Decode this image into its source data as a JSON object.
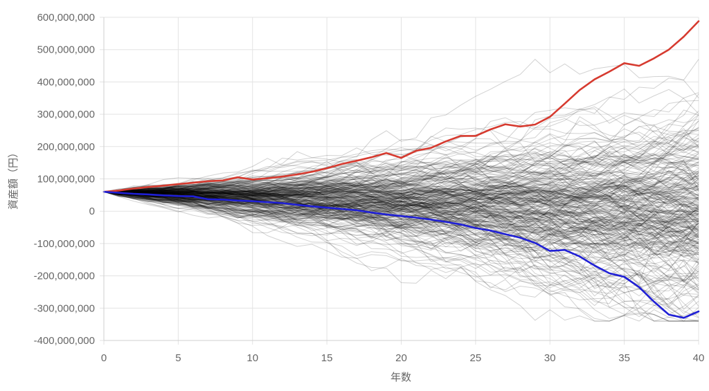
{
  "chart_data": {
    "type": "line",
    "xlabel": "年数",
    "ylabel": "資産額（円）",
    "xlim": [
      0,
      40
    ],
    "ylim": [
      -400000000,
      600000000
    ],
    "x_ticks": [
      "0",
      "5",
      "10",
      "15",
      "20",
      "25",
      "30",
      "35",
      "40"
    ],
    "y_ticks": [
      "600,000,000",
      "500,000,000",
      "400,000,000",
      "300,000,000",
      "200,000,000",
      "100,000,000",
      "0",
      "-100,000,000",
      "-200,000,000",
      "-300,000,000",
      "-400,000,000"
    ],
    "grid": true,
    "legend": "none",
    "simulation_paths": {
      "description_visible": false,
      "count_approx": 300,
      "start_value": 60000000,
      "color": "#000000",
      "opacity_approx": 0.18,
      "median_end_approx": 0,
      "p90_end_approx": 230000000,
      "p10_end_approx": -190000000
    },
    "series": [
      {
        "color": "#d63a2f",
        "x": [
          0,
          1,
          2,
          3,
          4,
          5,
          6,
          7,
          8,
          9,
          10,
          11,
          12,
          13,
          14,
          15,
          16,
          17,
          18,
          19,
          20,
          21,
          22,
          23,
          24,
          25,
          26,
          27,
          28,
          29,
          30,
          31,
          32,
          33,
          34,
          35,
          36,
          37,
          38,
          39,
          40
        ],
        "values": [
          60000000,
          64000000,
          70000000,
          75000000,
          79000000,
          84000000,
          88000000,
          93000000,
          95000000,
          105000000,
          98000000,
          102000000,
          107000000,
          114000000,
          122000000,
          133000000,
          146000000,
          156000000,
          167000000,
          180000000,
          165000000,
          187000000,
          196000000,
          216000000,
          233000000,
          233000000,
          253000000,
          269000000,
          262000000,
          268000000,
          292000000,
          333000000,
          375000000,
          408000000,
          432000000,
          458000000,
          450000000,
          473000000,
          500000000,
          540000000,
          588000000
        ]
      },
      {
        "color": "#1f1fd6",
        "x": [
          0,
          1,
          2,
          3,
          4,
          5,
          6,
          7,
          8,
          9,
          10,
          11,
          12,
          13,
          14,
          15,
          16,
          17,
          18,
          19,
          20,
          21,
          22,
          23,
          24,
          25,
          26,
          27,
          28,
          29,
          30,
          31,
          32,
          33,
          34,
          35,
          36,
          37,
          38,
          39,
          40
        ],
        "values": [
          60000000,
          57000000,
          54000000,
          52000000,
          49000000,
          47000000,
          46000000,
          37000000,
          36000000,
          33000000,
          31000000,
          28000000,
          25000000,
          20000000,
          15000000,
          11000000,
          7000000,
          3000000,
          -4000000,
          -10000000,
          -15000000,
          -20000000,
          -26000000,
          -33000000,
          -41000000,
          -52000000,
          -60000000,
          -71000000,
          -82000000,
          -98000000,
          -123000000,
          -120000000,
          -140000000,
          -168000000,
          -192000000,
          -203000000,
          -235000000,
          -280000000,
          -320000000,
          -330000000,
          -310000000
        ]
      }
    ]
  }
}
